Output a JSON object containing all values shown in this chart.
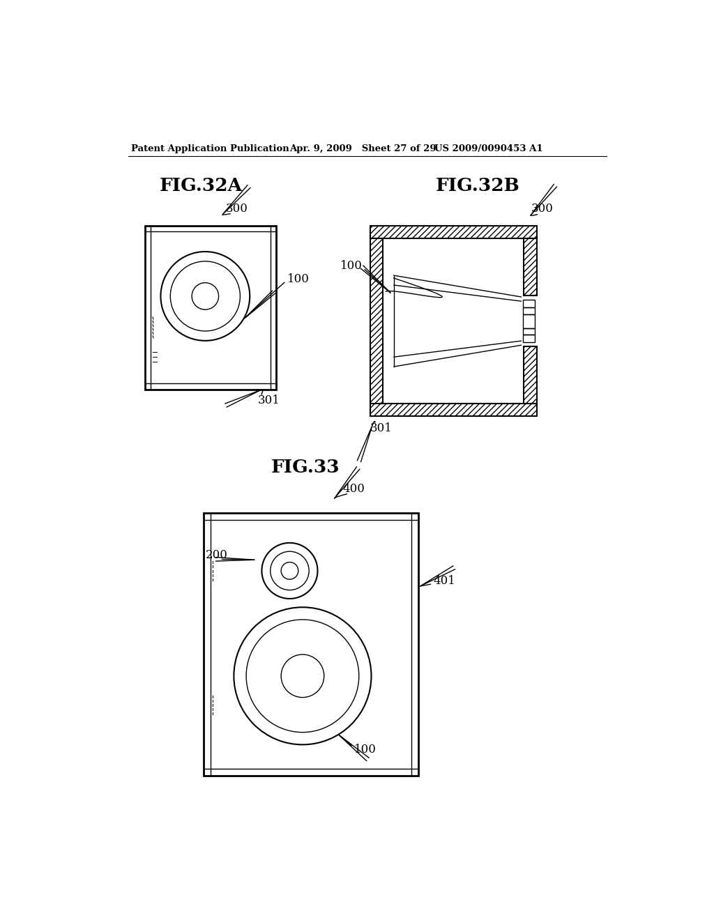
{
  "header_left": "Patent Application Publication",
  "header_mid": "Apr. 9, 2009   Sheet 27 of 29",
  "header_right": "US 2009/0090453 A1",
  "fig32a_title": "FIG.32A",
  "fig32b_title": "FIG.32B",
  "fig33_title": "FIG.33",
  "bg_color": "#ffffff",
  "line_color": "#000000"
}
